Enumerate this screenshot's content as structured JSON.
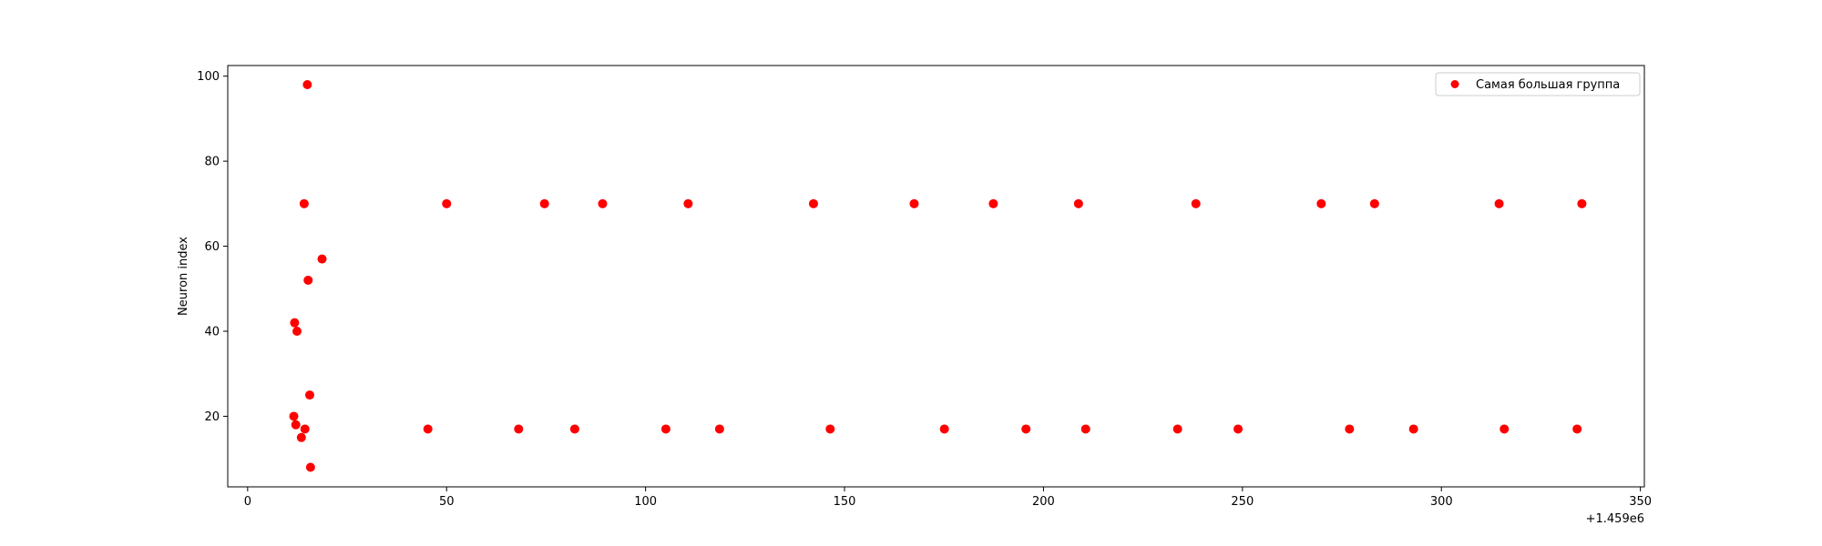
{
  "chart_data": {
    "type": "scatter",
    "xlabel": "",
    "ylabel": "Neuron index",
    "x_offset_label": "+1.459e6",
    "xlim": [
      1458995,
      1459351
    ],
    "ylim": [
      3.4,
      102.5
    ],
    "x_ticks": [
      1459000,
      1459050,
      1459100,
      1459150,
      1459200,
      1459250,
      1459300,
      1459350
    ],
    "x_tick_labels": [
      "0",
      "50",
      "100",
      "150",
      "200",
      "250",
      "300",
      "350"
    ],
    "y_ticks": [
      20,
      40,
      60,
      80,
      100
    ],
    "y_tick_labels": [
      "20",
      "40",
      "60",
      "80",
      "100"
    ],
    "grid": false,
    "legend_position": "top-right",
    "series": [
      {
        "name": "Самая большая группа",
        "color": "#ff0000",
        "points": [
          {
            "x": 1459011.6,
            "y": 20
          },
          {
            "x": 1459011.8,
            "y": 42
          },
          {
            "x": 1459012.1,
            "y": 18
          },
          {
            "x": 1459012.4,
            "y": 40
          },
          {
            "x": 1459013.5,
            "y": 15
          },
          {
            "x": 1459014.2,
            "y": 70
          },
          {
            "x": 1459014.4,
            "y": 17
          },
          {
            "x": 1459015.0,
            "y": 98
          },
          {
            "x": 1459015.2,
            "y": 52
          },
          {
            "x": 1459015.6,
            "y": 25
          },
          {
            "x": 1459015.8,
            "y": 8
          },
          {
            "x": 1459018.7,
            "y": 57
          },
          {
            "x": 1459045.3,
            "y": 17
          },
          {
            "x": 1459050.0,
            "y": 70
          },
          {
            "x": 1459068.1,
            "y": 17
          },
          {
            "x": 1459074.6,
            "y": 70
          },
          {
            "x": 1459082.2,
            "y": 17
          },
          {
            "x": 1459089.2,
            "y": 70
          },
          {
            "x": 1459105.1,
            "y": 17
          },
          {
            "x": 1459110.7,
            "y": 70
          },
          {
            "x": 1459118.6,
            "y": 17
          },
          {
            "x": 1459142.2,
            "y": 70
          },
          {
            "x": 1459146.4,
            "y": 17
          },
          {
            "x": 1459167.5,
            "y": 70
          },
          {
            "x": 1459175.1,
            "y": 17
          },
          {
            "x": 1459187.4,
            "y": 70
          },
          {
            "x": 1459195.6,
            "y": 17
          },
          {
            "x": 1459208.8,
            "y": 70
          },
          {
            "x": 1459210.6,
            "y": 17
          },
          {
            "x": 1459233.7,
            "y": 17
          },
          {
            "x": 1459238.3,
            "y": 70
          },
          {
            "x": 1459248.9,
            "y": 17
          },
          {
            "x": 1459269.8,
            "y": 70
          },
          {
            "x": 1459276.9,
            "y": 17
          },
          {
            "x": 1459283.2,
            "y": 70
          },
          {
            "x": 1459293.0,
            "y": 17
          },
          {
            "x": 1459314.5,
            "y": 70
          },
          {
            "x": 1459315.8,
            "y": 17
          },
          {
            "x": 1459334.1,
            "y": 17
          },
          {
            "x": 1459335.3,
            "y": 70
          }
        ]
      }
    ]
  }
}
